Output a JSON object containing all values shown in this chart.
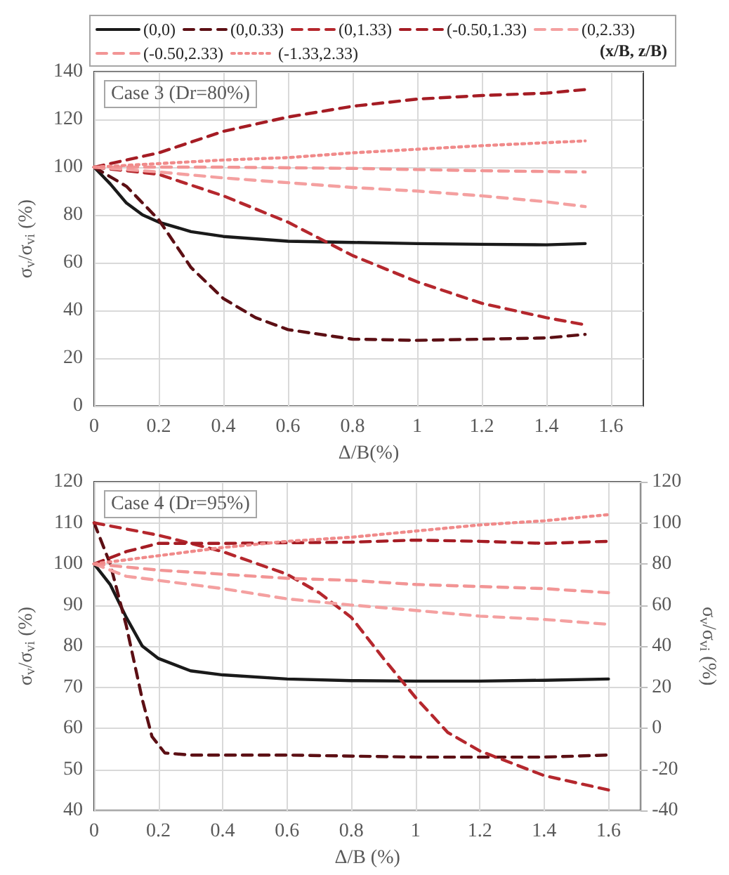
{
  "chart_data": [
    {
      "type": "line",
      "xlabel": "Δ/B(%)",
      "ylabel": "σ$_{v}$/σ$_{vi}$ (%)",
      "annotations": [
        "Case 3 (Dr=80%)"
      ],
      "legend": "top",
      "legend_title": "(x/B, z/B)",
      "grid": true,
      "xlim": [
        0,
        1.7
      ],
      "xticks": [
        0,
        0.2,
        0.4,
        0.6,
        0.8,
        1,
        1.2,
        1.4,
        1.6
      ],
      "ylim": [
        0,
        140
      ],
      "yticks": [
        0,
        20,
        40,
        60,
        80,
        100,
        120,
        140
      ],
      "series": [
        {
          "name": "(0,0)",
          "color": "#1a1a1a",
          "line_style": "solid",
          "x": [
            0,
            0.05,
            0.1,
            0.15,
            0.2,
            0.3,
            0.4,
            0.6,
            0.8,
            1.0,
            1.2,
            1.4,
            1.52
          ],
          "values": [
            100,
            93,
            85,
            80,
            77,
            73,
            71,
            69,
            68.5,
            68,
            67.7,
            67.5,
            68
          ]
        },
        {
          "name": "(0,0.33)",
          "color": "#5c0f14",
          "line_style": "dashed",
          "x": [
            0,
            0.1,
            0.2,
            0.3,
            0.4,
            0.5,
            0.6,
            0.8,
            1.0,
            1.2,
            1.4,
            1.52
          ],
          "values": [
            100,
            92,
            78,
            58,
            45,
            37,
            32,
            28,
            27.5,
            28,
            28.5,
            30
          ]
        },
        {
          "name": "(0,1.33)",
          "color": "#b5272d",
          "line_style": "dashed",
          "x": [
            0,
            0.2,
            0.4,
            0.6,
            0.8,
            1.0,
            1.2,
            1.4,
            1.52
          ],
          "values": [
            100,
            97,
            88,
            77,
            63,
            52,
            43,
            37,
            34
          ]
        },
        {
          "name": "(-0.50,1.33)",
          "color": "#a51c24",
          "line_style": "dashed",
          "x": [
            0,
            0.2,
            0.4,
            0.6,
            0.8,
            1.0,
            1.2,
            1.4,
            1.52
          ],
          "values": [
            100,
            106,
            115,
            121,
            125.5,
            128.5,
            130,
            131,
            132.5
          ]
        },
        {
          "name": "(0,2.33)",
          "color": "#f4a0a0",
          "line_style": "dashed",
          "x": [
            0,
            0.2,
            0.4,
            0.6,
            0.8,
            1.0,
            1.2,
            1.4,
            1.52
          ],
          "values": [
            100,
            98,
            95.5,
            93.5,
            91.5,
            90,
            88,
            85.5,
            83.5
          ]
        },
        {
          "name": "(-0.50,2.33)",
          "color": "#f29595",
          "line_style": "dashed",
          "x": [
            0,
            0.4,
            0.8,
            1.2,
            1.52
          ],
          "values": [
            100,
            100,
            99.5,
            98.5,
            98
          ]
        },
        {
          "name": "(-1.33,2.33)",
          "color": "#f08a8a",
          "line_style": "dotted",
          "x": [
            0,
            0.2,
            0.4,
            0.6,
            0.8,
            1.0,
            1.2,
            1.52
          ],
          "values": [
            100,
            101.5,
            103,
            104,
            106,
            107.5,
            109,
            111
          ]
        }
      ]
    },
    {
      "type": "line",
      "xlabel": "Δ/B (%)",
      "ylabel": "σ$_{v}$/σ$_{vi}$ (%)",
      "y2label": "σ$_{v}$/σ$_{vi}$ (%)",
      "annotations": [
        "Case 4 (Dr=95%)"
      ],
      "grid": true,
      "xlim": [
        0,
        1.7
      ],
      "xticks": [
        0,
        0.2,
        0.4,
        0.6,
        0.8,
        1,
        1.2,
        1.4,
        1.6
      ],
      "ylim": [
        40,
        120
      ],
      "yticks": [
        40,
        50,
        60,
        70,
        80,
        90,
        100,
        110,
        120
      ],
      "y2lim": [
        -40,
        120
      ],
      "y2ticks": [
        -40,
        -20,
        0,
        20,
        40,
        60,
        80,
        100,
        120
      ],
      "series": [
        {
          "color": "#1a1a1a",
          "line_style": "solid",
          "x": [
            0,
            0.05,
            0.1,
            0.15,
            0.2,
            0.3,
            0.4,
            0.6,
            0.8,
            1.0,
            1.2,
            1.4,
            1.6
          ],
          "values": [
            100,
            95,
            87,
            80,
            77,
            74,
            73,
            72,
            71.6,
            71.5,
            71.5,
            71.7,
            72
          ]
        },
        {
          "color": "#5c0f14",
          "line_style": "dashed",
          "axis": "y2",
          "x": [
            0,
            0.05,
            0.1,
            0.15,
            0.18,
            0.22,
            0.3,
            0.6,
            1.0,
            1.2,
            1.4,
            1.6
          ],
          "values": [
            100,
            80,
            50,
            14,
            -4,
            -12,
            -13,
            -13,
            -14,
            -14,
            -14,
            -13
          ]
        },
        {
          "color": "#b5272d",
          "line_style": "dashed",
          "axis": "y2",
          "x": [
            0,
            0.2,
            0.4,
            0.6,
            0.7,
            0.8,
            0.9,
            1.0,
            1.1,
            1.2,
            1.4,
            1.6
          ],
          "values": [
            100,
            94,
            86,
            75,
            66,
            54,
            34,
            15,
            -2,
            -11,
            -23,
            -30
          ]
        },
        {
          "color": "#a51c24",
          "line_style": "dashed",
          "x": [
            0,
            0.1,
            0.2,
            0.4,
            0.8,
            1.0,
            1.2,
            1.4,
            1.6
          ],
          "values": [
            100,
            103,
            105,
            105,
            105.3,
            105.8,
            105.5,
            105,
            105.5
          ]
        },
        {
          "color": "#f4a0a0",
          "line_style": "dashed",
          "x": [
            0,
            0.1,
            0.2,
            0.4,
            0.6,
            0.8,
            1.0,
            1.2,
            1.4,
            1.6
          ],
          "values": [
            100,
            97,
            96,
            94,
            91.5,
            90,
            88.7,
            87.3,
            86.5,
            85.3
          ]
        },
        {
          "color": "#f29595",
          "line_style": "dashed",
          "x": [
            0,
            0.2,
            0.4,
            0.6,
            0.8,
            1.0,
            1.2,
            1.4,
            1.6
          ],
          "values": [
            100,
            98.5,
            97.5,
            96.5,
            96,
            95,
            94.5,
            94,
            93
          ]
        },
        {
          "color": "#f08a8a",
          "line_style": "dotted",
          "x": [
            0,
            0.2,
            0.4,
            0.6,
            0.8,
            1.0,
            1.2,
            1.4,
            1.6
          ],
          "values": [
            100,
            102,
            104,
            105.5,
            106.5,
            108,
            109.5,
            110.5,
            112
          ]
        }
      ]
    }
  ]
}
